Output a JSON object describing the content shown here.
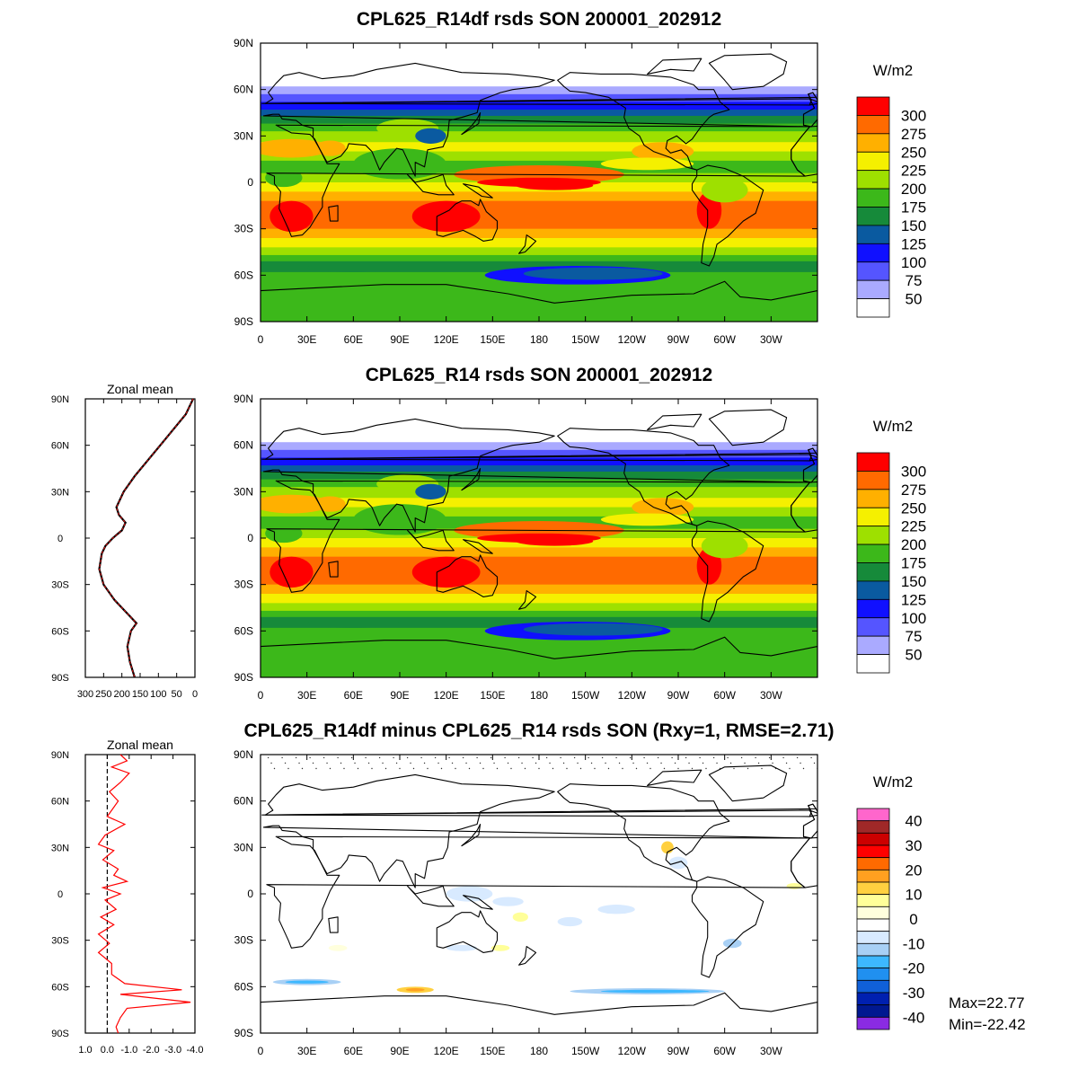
{
  "chart_data": [
    {
      "type": "heatmap",
      "title": "CPL625_R14df rsds SON 200001_202912",
      "units": "W/m2",
      "x_ticks": [
        "0",
        "30E",
        "60E",
        "90E",
        "120E",
        "150E",
        "180",
        "150W",
        "120W",
        "90W",
        "60W",
        "30W"
      ],
      "y_ticks": [
        "90N",
        "60N",
        "30N",
        "0",
        "30S",
        "60S",
        "90S"
      ],
      "colorbar": {
        "labels": [
          "300",
          "275",
          "250",
          "225",
          "200",
          "175",
          "150",
          "125",
          "100",
          "75",
          "50"
        ],
        "colors": [
          "#ff0000",
          "#ff6a00",
          "#ffb000",
          "#f5f000",
          "#9ee000",
          "#3cb81a",
          "#168a3a",
          "#0a5aa0",
          "#1010ff",
          "#5555ff",
          "#aaaaff",
          "#ffffff"
        ]
      }
    },
    {
      "type": "heatmap",
      "title": "CPL625_R14 rsds SON 200001_202912",
      "units": "W/m2",
      "x_ticks": [
        "0",
        "30E",
        "60E",
        "90E",
        "120E",
        "150E",
        "180",
        "150W",
        "120W",
        "90W",
        "60W",
        "30W"
      ],
      "y_ticks": [
        "90N",
        "60N",
        "30N",
        "0",
        "30S",
        "60S",
        "90S"
      ],
      "colorbar": {
        "labels": [
          "300",
          "275",
          "250",
          "225",
          "200",
          "175",
          "150",
          "125",
          "100",
          "75",
          "50"
        ],
        "colors": [
          "#ff0000",
          "#ff6a00",
          "#ffb000",
          "#f5f000",
          "#9ee000",
          "#3cb81a",
          "#168a3a",
          "#0a5aa0",
          "#1010ff",
          "#5555ff",
          "#aaaaff",
          "#ffffff"
        ]
      },
      "zonal_mean": {
        "title": "Zonal mean",
        "x_ticks": [
          "300",
          "250",
          "200",
          "150",
          "100",
          "50",
          "0"
        ],
        "y_ticks": [
          "90N",
          "60N",
          "30N",
          "0",
          "30S",
          "60S",
          "90S"
        ],
        "xlim": [
          300,
          0
        ],
        "points": [
          {
            "lat": 90,
            "v": 5
          },
          {
            "lat": 80,
            "v": 25
          },
          {
            "lat": 70,
            "v": 60
          },
          {
            "lat": 60,
            "v": 95
          },
          {
            "lat": 50,
            "v": 130
          },
          {
            "lat": 40,
            "v": 165
          },
          {
            "lat": 30,
            "v": 195
          },
          {
            "lat": 20,
            "v": 215
          },
          {
            "lat": 15,
            "v": 208
          },
          {
            "lat": 10,
            "v": 190
          },
          {
            "lat": 5,
            "v": 200
          },
          {
            "lat": 0,
            "v": 225
          },
          {
            "lat": -5,
            "v": 245
          },
          {
            "lat": -10,
            "v": 255
          },
          {
            "lat": -20,
            "v": 262
          },
          {
            "lat": -30,
            "v": 250
          },
          {
            "lat": -40,
            "v": 220
          },
          {
            "lat": -50,
            "v": 180
          },
          {
            "lat": -55,
            "v": 160
          },
          {
            "lat": -60,
            "v": 175
          },
          {
            "lat": -70,
            "v": 185
          },
          {
            "lat": -80,
            "v": 178
          },
          {
            "lat": -90,
            "v": 165
          }
        ]
      }
    },
    {
      "type": "heatmap",
      "title": "CPL625_R14df minus CPL625_R14 rsds SON (Rxy=1, RMSE=2.71)",
      "units": "W/m2",
      "x_ticks": [
        "0",
        "30E",
        "60E",
        "90E",
        "120E",
        "150E",
        "180",
        "150W",
        "120W",
        "90W",
        "60W",
        "30W"
      ],
      "y_ticks": [
        "90N",
        "60N",
        "30N",
        "0",
        "30S",
        "60S",
        "90S"
      ],
      "colorbar": {
        "labels": [
          "40",
          "30",
          "20",
          "10",
          "0",
          "-10",
          "-20",
          "-30",
          "-40"
        ],
        "colors": [
          "#ff66cc",
          "#a02828",
          "#cc0000",
          "#ff0000",
          "#ff6a00",
          "#ffa020",
          "#ffd040",
          "#ffff99",
          "#ffffdd",
          "#ffffff",
          "#d8eaff",
          "#a8d0f5",
          "#3db8ff",
          "#2090f0",
          "#1060d8",
          "#0020b0",
          "#001890",
          "#8a2be2"
        ]
      },
      "stats": {
        "max": "Max=22.77",
        "min": "Min=-22.42"
      },
      "zonal_mean": {
        "title": "Zonal mean",
        "x_ticks": [
          "1.0",
          "0.0",
          "-1.0",
          "-2.0",
          "-3.0",
          "-4.0"
        ],
        "y_ticks": [
          "90N",
          "60N",
          "30N",
          "0",
          "30S",
          "60S",
          "90S"
        ],
        "xlim": [
          1.0,
          -4.0
        ],
        "points": [
          {
            "lat": 90,
            "v": -0.6
          },
          {
            "lat": 86,
            "v": -0.9
          },
          {
            "lat": 82,
            "v": -0.2
          },
          {
            "lat": 78,
            "v": -1.0
          },
          {
            "lat": 72,
            "v": -0.6
          },
          {
            "lat": 66,
            "v": -0.1
          },
          {
            "lat": 60,
            "v": -0.5
          },
          {
            "lat": 50,
            "v": 0.0
          },
          {
            "lat": 45,
            "v": -0.8
          },
          {
            "lat": 38,
            "v": 0.1
          },
          {
            "lat": 32,
            "v": 0.4
          },
          {
            "lat": 28,
            "v": -0.3
          },
          {
            "lat": 22,
            "v": 0.2
          },
          {
            "lat": 16,
            "v": -0.5
          },
          {
            "lat": 12,
            "v": -0.3
          },
          {
            "lat": 8,
            "v": -0.9
          },
          {
            "lat": 4,
            "v": 0.2
          },
          {
            "lat": 0,
            "v": -0.6
          },
          {
            "lat": -4,
            "v": 0.1
          },
          {
            "lat": -10,
            "v": -0.4
          },
          {
            "lat": -15,
            "v": 0.3
          },
          {
            "lat": -20,
            "v": -0.3
          },
          {
            "lat": -26,
            "v": 0.4
          },
          {
            "lat": -32,
            "v": -0.1
          },
          {
            "lat": -38,
            "v": 0.4
          },
          {
            "lat": -45,
            "v": -0.2
          },
          {
            "lat": -52,
            "v": -0.2
          },
          {
            "lat": -58,
            "v": -0.8
          },
          {
            "lat": -62,
            "v": -3.4
          },
          {
            "lat": -65,
            "v": -0.6
          },
          {
            "lat": -70,
            "v": -3.8
          },
          {
            "lat": -74,
            "v": -0.9
          },
          {
            "lat": -80,
            "v": -0.6
          },
          {
            "lat": -86,
            "v": -0.4
          },
          {
            "lat": -90,
            "v": -0.5
          }
        ]
      }
    }
  ]
}
